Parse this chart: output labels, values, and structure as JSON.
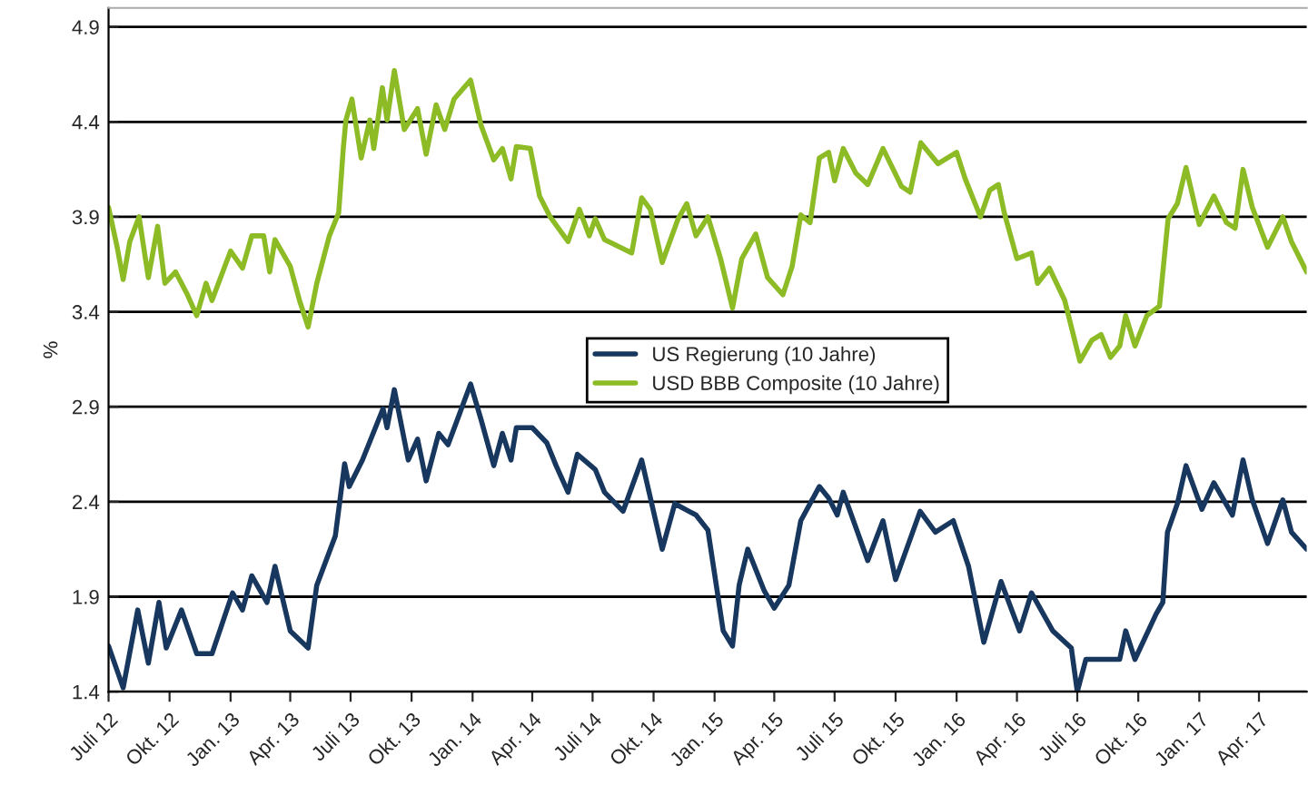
{
  "chart_data": {
    "type": "line",
    "ylabel": "%",
    "ylim": [
      1.4,
      5.0
    ],
    "yticks": [
      1.4,
      1.9,
      2.4,
      2.9,
      3.4,
      3.9,
      4.4,
      4.9
    ],
    "xlim": [
      "2012-07-01",
      "2017-06-12"
    ],
    "xticks": [
      {
        "value": "2012-07-01",
        "label": "Juli 12"
      },
      {
        "value": "2012-10-01",
        "label": "Okt. 12"
      },
      {
        "value": "2013-01-01",
        "label": "Jan. 13"
      },
      {
        "value": "2013-04-01",
        "label": "Apr. 13"
      },
      {
        "value": "2013-07-01",
        "label": "Juli 13"
      },
      {
        "value": "2013-10-01",
        "label": "Okt. 13"
      },
      {
        "value": "2014-01-01",
        "label": "Jan. 14"
      },
      {
        "value": "2014-04-01",
        "label": "Apr. 14"
      },
      {
        "value": "2014-07-01",
        "label": "Juli 14"
      },
      {
        "value": "2014-10-01",
        "label": "Okt. 14"
      },
      {
        "value": "2015-01-01",
        "label": "Jan. 15"
      },
      {
        "value": "2015-04-01",
        "label": "Apr. 15"
      },
      {
        "value": "2015-07-01",
        "label": "Juli 15"
      },
      {
        "value": "2015-10-01",
        "label": "Okt. 15"
      },
      {
        "value": "2016-01-01",
        "label": "Jan. 16"
      },
      {
        "value": "2016-04-01",
        "label": "Apr. 16"
      },
      {
        "value": "2016-07-01",
        "label": "Juli 16"
      },
      {
        "value": "2016-10-01",
        "label": "Okt. 16"
      },
      {
        "value": "2017-01-01",
        "label": "Jan. 17"
      },
      {
        "value": "2017-04-01",
        "label": "Apr. 17"
      }
    ],
    "grid": "y",
    "legend": "center",
    "marker": "none",
    "line_style": "solid",
    "series": [
      {
        "name": "US Regierung (10 Jahre)",
        "color": "#17375e",
        "x": [
          "2012-07-01",
          "2012-07-23",
          "2012-08-14",
          "2012-08-30",
          "2012-09-15",
          "2012-09-26",
          "2012-10-19",
          "2012-11-11",
          "2012-12-04",
          "2013-01-04",
          "2013-01-19",
          "2013-02-02",
          "2013-02-25",
          "2013-03-09",
          "2013-04-01",
          "2013-04-28",
          "2013-05-11",
          "2013-06-08",
          "2013-06-22",
          "2013-06-29",
          "2013-07-19",
          "2013-08-19",
          "2013-08-25",
          "2013-09-05",
          "2013-09-26",
          "2013-10-10",
          "2013-10-23",
          "2013-11-11",
          "2013-11-25",
          "2013-12-29",
          "2014-01-14",
          "2014-02-02",
          "2014-02-15",
          "2014-02-28",
          "2014-03-08",
          "2014-04-01",
          "2014-04-23",
          "2014-05-07",
          "2014-05-25",
          "2014-06-08",
          "2014-07-05",
          "2014-07-19",
          "2014-08-16",
          "2014-09-13",
          "2014-10-14",
          "2014-11-02",
          "2014-12-04",
          "2014-12-22",
          "2015-01-14",
          "2015-01-28",
          "2015-02-07",
          "2015-02-20",
          "2015-03-17",
          "2015-04-01",
          "2015-04-23",
          "2015-05-11",
          "2015-06-08",
          "2015-06-22",
          "2015-07-05",
          "2015-07-14",
          "2015-08-20",
          "2015-09-12",
          "2015-10-01",
          "2015-11-07",
          "2015-11-30",
          "2015-12-27",
          "2016-01-19",
          "2016-02-11",
          "2016-03-08",
          "2016-04-05",
          "2016-04-23",
          "2016-05-25",
          "2016-06-22",
          "2016-07-01",
          "2016-07-14",
          "2016-09-03",
          "2016-09-12",
          "2016-09-26",
          "2016-10-28",
          "2016-11-07",
          "2016-11-14",
          "2016-11-29",
          "2016-12-12",
          "2017-01-05",
          "2017-01-23",
          "2017-02-20",
          "2017-03-08",
          "2017-03-22",
          "2017-04-14",
          "2017-05-07",
          "2017-05-20",
          "2017-06-12"
        ],
        "values": [
          1.64,
          1.42,
          1.83,
          1.55,
          1.87,
          1.63,
          1.83,
          1.6,
          1.6,
          1.92,
          1.83,
          2.01,
          1.87,
          2.06,
          1.72,
          1.63,
          1.96,
          2.22,
          2.6,
          2.48,
          2.62,
          2.89,
          2.79,
          2.99,
          2.62,
          2.73,
          2.51,
          2.76,
          2.7,
          3.02,
          2.83,
          2.59,
          2.76,
          2.62,
          2.79,
          2.79,
          2.71,
          2.59,
          2.45,
          2.65,
          2.57,
          2.45,
          2.35,
          2.62,
          2.15,
          2.39,
          2.33,
          2.25,
          1.72,
          1.64,
          1.96,
          2.15,
          1.93,
          1.84,
          1.96,
          2.3,
          2.48,
          2.42,
          2.33,
          2.45,
          2.09,
          2.3,
          1.99,
          2.35,
          2.24,
          2.3,
          2.06,
          1.66,
          1.98,
          1.72,
          1.92,
          1.72,
          1.63,
          1.4,
          1.57,
          1.57,
          1.72,
          1.57,
          1.81,
          1.87,
          2.24,
          2.39,
          2.59,
          2.36,
          2.5,
          2.33,
          2.62,
          2.41,
          2.18,
          2.41,
          2.24,
          2.15
        ]
      },
      {
        "name": "USD BBB Composite (10 Jahre)",
        "color": "#8dbb25",
        "x": [
          "2012-07-01",
          "2012-07-14",
          "2012-07-23",
          "2012-08-02",
          "2012-08-16",
          "2012-08-30",
          "2012-09-13",
          "2012-09-24",
          "2012-10-10",
          "2012-10-28",
          "2012-11-11",
          "2012-11-25",
          "2012-12-04",
          "2013-01-01",
          "2013-01-19",
          "2013-02-02",
          "2013-02-20",
          "2013-03-01",
          "2013-03-09",
          "2013-04-01",
          "2013-04-15",
          "2013-04-28",
          "2013-05-11",
          "2013-05-30",
          "2013-06-13",
          "2013-06-20",
          "2013-06-24",
          "2013-07-03",
          "2013-07-17",
          "2013-07-30",
          "2013-08-05",
          "2013-08-18",
          "2013-08-25",
          "2013-09-05",
          "2013-09-20",
          "2013-10-10",
          "2013-10-23",
          "2013-11-07",
          "2013-11-20",
          "2013-12-04",
          "2013-12-29",
          "2014-01-14",
          "2014-02-02",
          "2014-02-15",
          "2014-02-28",
          "2014-03-08",
          "2014-03-29",
          "2014-04-12",
          "2014-04-28",
          "2014-05-25",
          "2014-06-11",
          "2014-06-26",
          "2014-07-05",
          "2014-07-19",
          "2014-08-29",
          "2014-09-13",
          "2014-09-26",
          "2014-10-14",
          "2014-11-07",
          "2014-11-20",
          "2014-12-04",
          "2014-12-22",
          "2015-01-10",
          "2015-01-28",
          "2015-02-11",
          "2015-03-04",
          "2015-03-22",
          "2015-04-14",
          "2015-04-28",
          "2015-05-11",
          "2015-05-25",
          "2015-06-08",
          "2015-06-22",
          "2015-07-01",
          "2015-07-14",
          "2015-08-02",
          "2015-08-20",
          "2015-09-12",
          "2015-10-10",
          "2015-10-23",
          "2015-11-08",
          "2015-12-04",
          "2016-01-01",
          "2016-01-14",
          "2016-02-06",
          "2016-02-20",
          "2016-03-04",
          "2016-03-13",
          "2016-04-01",
          "2016-04-23",
          "2016-05-02",
          "2016-05-20",
          "2016-06-12",
          "2016-07-05",
          "2016-07-23",
          "2016-08-06",
          "2016-08-20",
          "2016-09-03",
          "2016-09-12",
          "2016-09-26",
          "2016-10-14",
          "2016-11-02",
          "2016-11-15",
          "2016-11-29",
          "2016-12-12",
          "2017-01-01",
          "2017-01-23",
          "2017-02-11",
          "2017-02-24",
          "2017-03-08",
          "2017-03-22",
          "2017-04-14",
          "2017-05-07",
          "2017-05-20",
          "2017-06-12"
        ],
        "values": [
          3.95,
          3.74,
          3.57,
          3.77,
          3.9,
          3.58,
          3.85,
          3.55,
          3.61,
          3.49,
          3.38,
          3.55,
          3.46,
          3.72,
          3.63,
          3.8,
          3.8,
          3.61,
          3.78,
          3.64,
          3.46,
          3.32,
          3.55,
          3.8,
          3.92,
          4.26,
          4.41,
          4.52,
          4.21,
          4.41,
          4.26,
          4.58,
          4.41,
          4.67,
          4.36,
          4.47,
          4.23,
          4.49,
          4.36,
          4.52,
          4.62,
          4.38,
          4.2,
          4.26,
          4.1,
          4.27,
          4.26,
          4.01,
          3.9,
          3.77,
          3.94,
          3.8,
          3.89,
          3.78,
          3.71,
          4.0,
          3.94,
          3.66,
          3.89,
          3.97,
          3.8,
          3.9,
          3.68,
          3.42,
          3.68,
          3.81,
          3.58,
          3.49,
          3.64,
          3.91,
          3.87,
          4.21,
          4.24,
          4.09,
          4.26,
          4.13,
          4.07,
          4.26,
          4.06,
          4.03,
          4.29,
          4.18,
          4.24,
          4.1,
          3.9,
          4.04,
          4.07,
          3.92,
          3.68,
          3.71,
          3.55,
          3.63,
          3.46,
          3.14,
          3.25,
          3.28,
          3.16,
          3.22,
          3.38,
          3.22,
          3.38,
          3.43,
          3.89,
          3.97,
          4.16,
          3.86,
          4.01,
          3.87,
          3.84,
          4.15,
          3.95,
          3.74,
          3.9,
          3.77,
          3.61
        ]
      }
    ]
  }
}
